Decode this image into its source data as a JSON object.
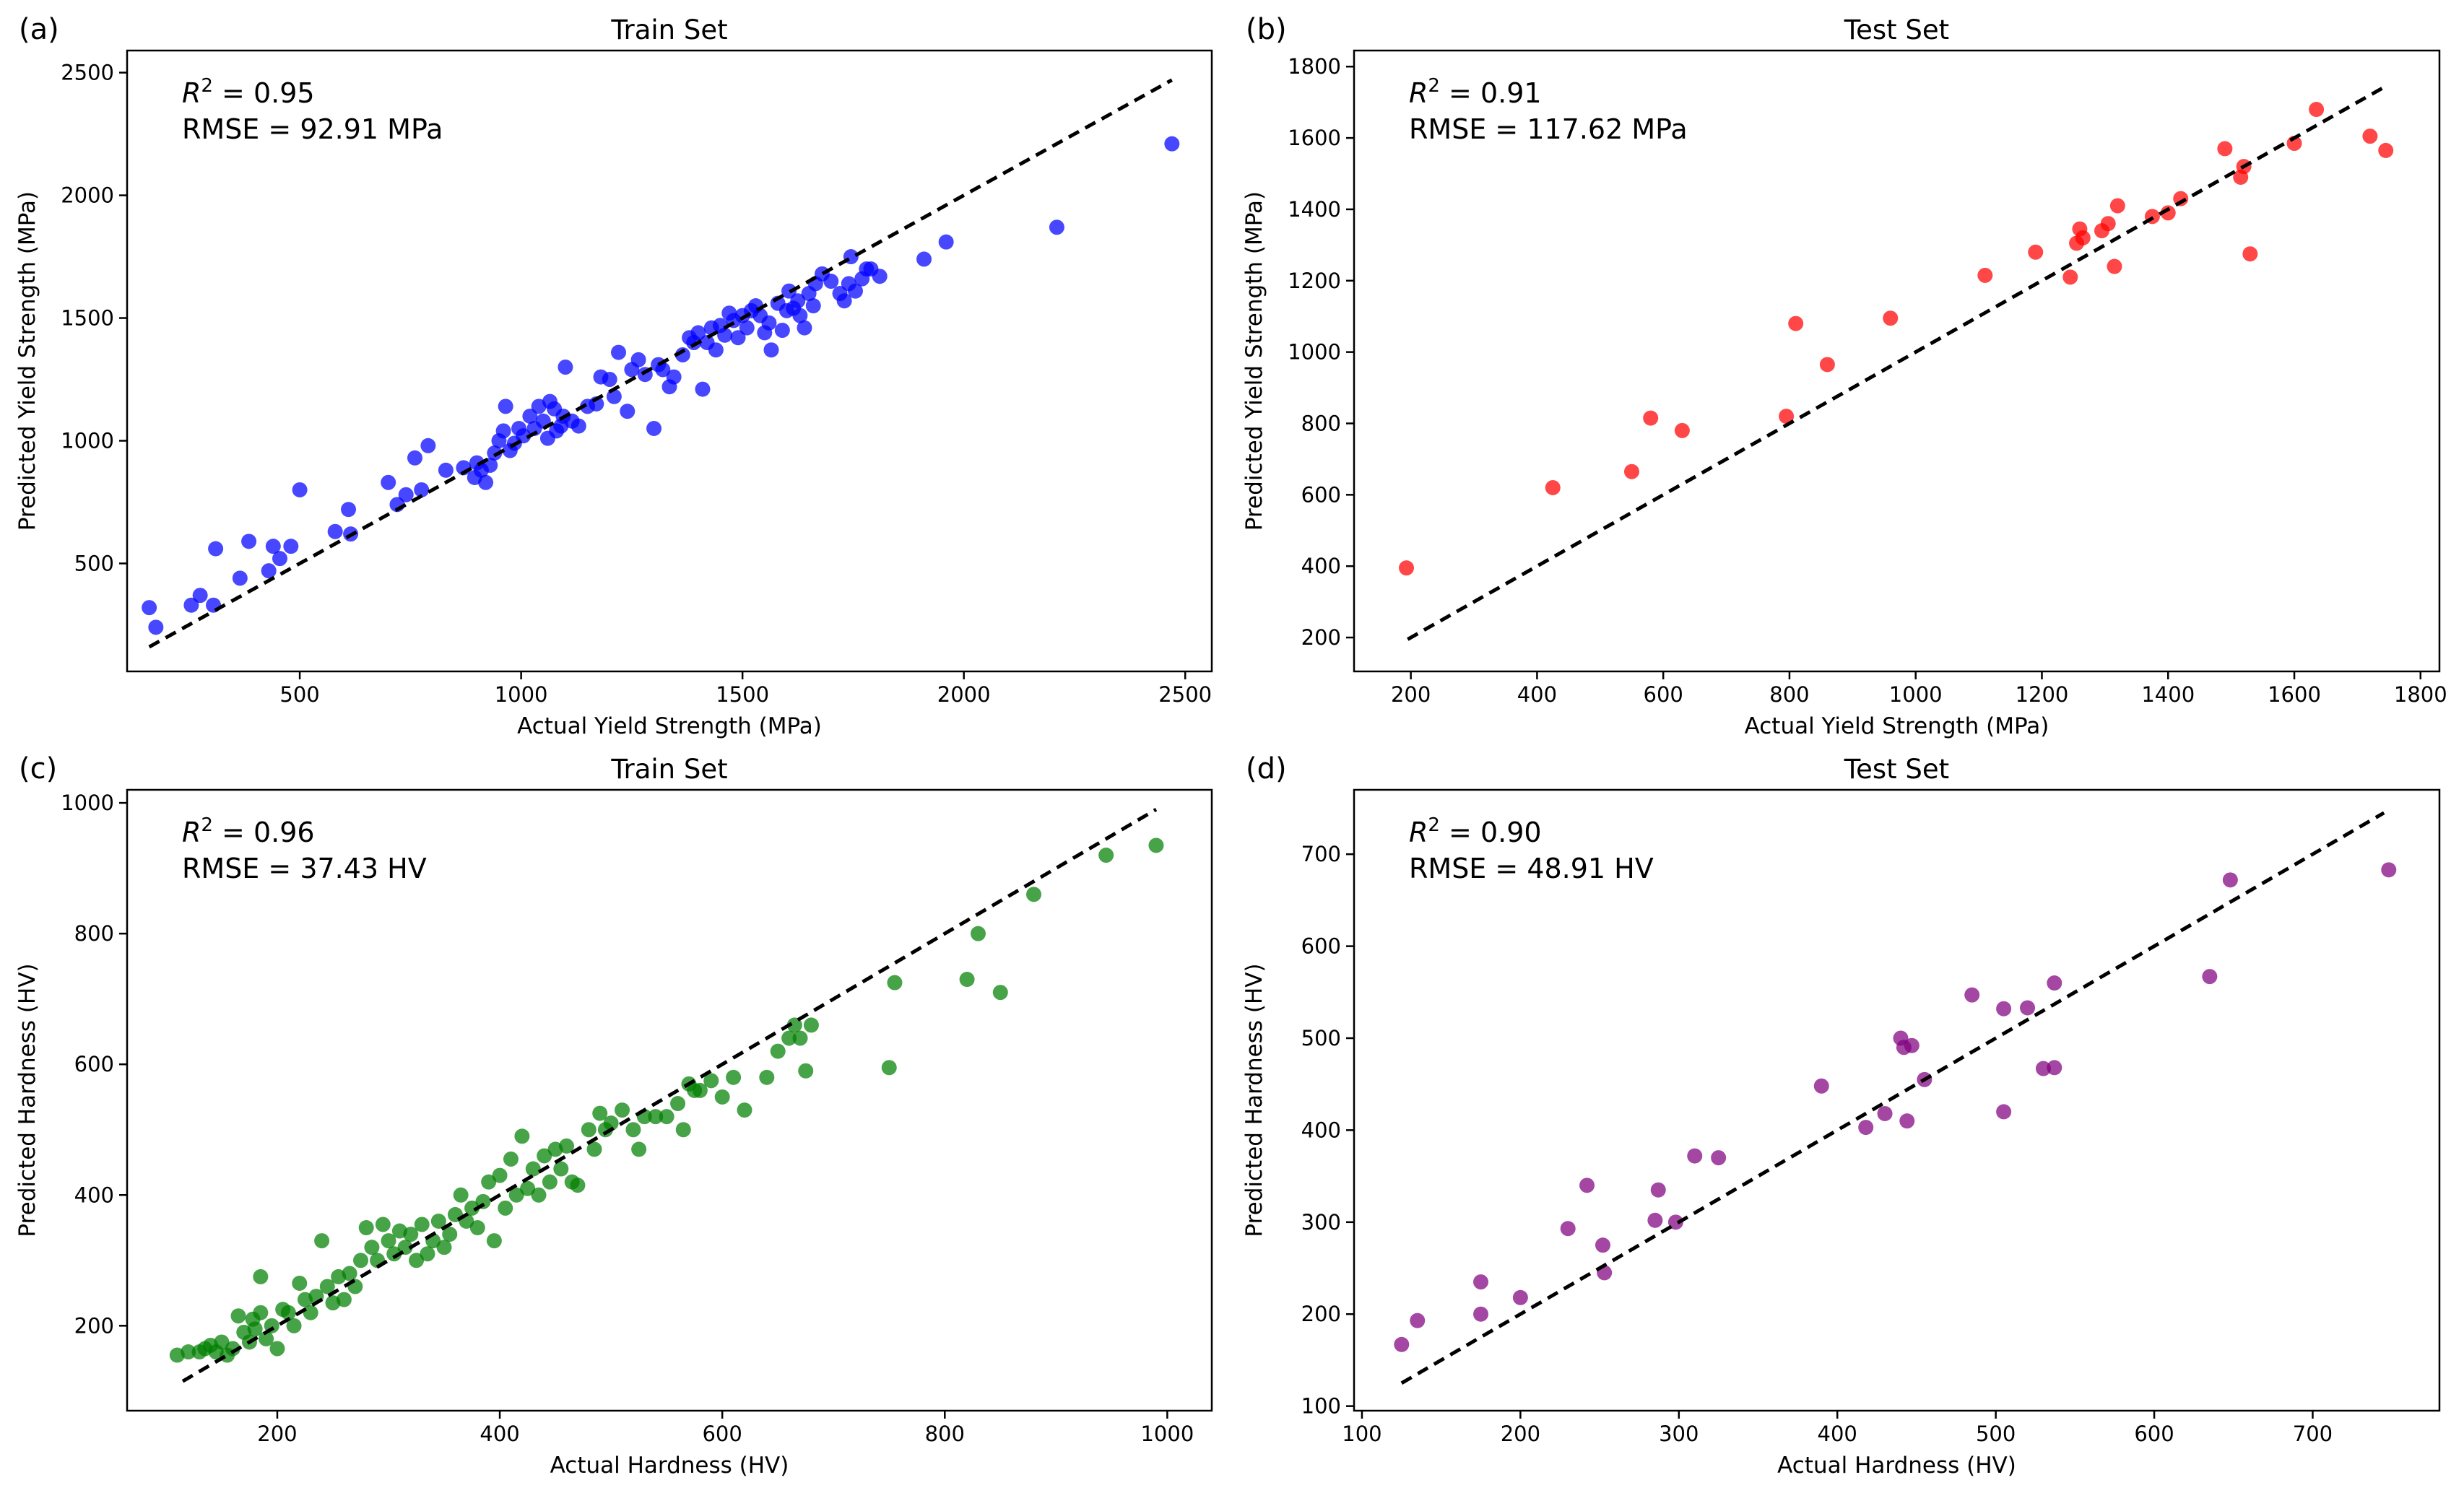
{
  "chart_data": [
    {
      "type": "scatter",
      "panel_label": "(a)",
      "title": "Train Set",
      "xlabel": "Actual Yield Strength (MPa)",
      "ylabel": "Predicted Yield Strength (MPa)",
      "xlim": [
        110,
        2560
      ],
      "ylim": [
        60,
        2590
      ],
      "xticks": [
        500,
        1000,
        1500,
        2000,
        2500
      ],
      "yticks": [
        500,
        1000,
        1500,
        2000,
        2500
      ],
      "xtick_labels": [
        "500",
        "1000",
        "1500",
        "2000",
        "2500"
      ],
      "ytick_labels": [
        "500",
        "1000",
        "1500",
        "2000",
        "2500"
      ],
      "r2_label": "R",
      "r2_sup": "2",
      "r2_value": " = 0.95",
      "rmse": "RMSE = 92.91 MPa",
      "color": "#0000ff",
      "diagonal": [
        160,
        2470
      ],
      "points": [
        [
          160,
          320
        ],
        [
          175,
          240
        ],
        [
          255,
          330
        ],
        [
          275,
          370
        ],
        [
          305,
          330
        ],
        [
          310,
          560
        ],
        [
          365,
          440
        ],
        [
          385,
          590
        ],
        [
          430,
          470
        ],
        [
          440,
          570
        ],
        [
          455,
          520
        ],
        [
          480,
          570
        ],
        [
          500,
          800
        ],
        [
          580,
          630
        ],
        [
          610,
          720
        ],
        [
          615,
          620
        ],
        [
          700,
          830
        ],
        [
          720,
          740
        ],
        [
          740,
          780
        ],
        [
          760,
          930
        ],
        [
          775,
          800
        ],
        [
          790,
          980
        ],
        [
          830,
          880
        ],
        [
          870,
          890
        ],
        [
          895,
          850
        ],
        [
          900,
          910
        ],
        [
          910,
          880
        ],
        [
          920,
          830
        ],
        [
          930,
          900
        ],
        [
          940,
          950
        ],
        [
          950,
          1000
        ],
        [
          960,
          1040
        ],
        [
          965,
          1140
        ],
        [
          975,
          960
        ],
        [
          985,
          990
        ],
        [
          995,
          1050
        ],
        [
          1005,
          1020
        ],
        [
          1020,
          1100
        ],
        [
          1030,
          1050
        ],
        [
          1040,
          1140
        ],
        [
          1050,
          1080
        ],
        [
          1060,
          1010
        ],
        [
          1065,
          1160
        ],
        [
          1075,
          1130
        ],
        [
          1080,
          1040
        ],
        [
          1090,
          1060
        ],
        [
          1095,
          1100
        ],
        [
          1100,
          1300
        ],
        [
          1115,
          1080
        ],
        [
          1130,
          1060
        ],
        [
          1150,
          1140
        ],
        [
          1170,
          1150
        ],
        [
          1180,
          1260
        ],
        [
          1200,
          1250
        ],
        [
          1210,
          1180
        ],
        [
          1220,
          1360
        ],
        [
          1240,
          1120
        ],
        [
          1250,
          1290
        ],
        [
          1265,
          1330
        ],
        [
          1280,
          1270
        ],
        [
          1300,
          1050
        ],
        [
          1310,
          1310
        ],
        [
          1320,
          1290
        ],
        [
          1335,
          1220
        ],
        [
          1345,
          1260
        ],
        [
          1365,
          1350
        ],
        [
          1380,
          1420
        ],
        [
          1390,
          1400
        ],
        [
          1400,
          1440
        ],
        [
          1410,
          1210
        ],
        [
          1420,
          1400
        ],
        [
          1430,
          1460
        ],
        [
          1440,
          1370
        ],
        [
          1450,
          1470
        ],
        [
          1460,
          1430
        ],
        [
          1470,
          1520
        ],
        [
          1480,
          1490
        ],
        [
          1490,
          1420
        ],
        [
          1500,
          1510
        ],
        [
          1510,
          1460
        ],
        [
          1520,
          1530
        ],
        [
          1530,
          1550
        ],
        [
          1540,
          1510
        ],
        [
          1550,
          1440
        ],
        [
          1560,
          1480
        ],
        [
          1565,
          1370
        ],
        [
          1580,
          1560
        ],
        [
          1590,
          1450
        ],
        [
          1600,
          1530
        ],
        [
          1605,
          1610
        ],
        [
          1615,
          1540
        ],
        [
          1625,
          1570
        ],
        [
          1630,
          1510
        ],
        [
          1640,
          1460
        ],
        [
          1650,
          1600
        ],
        [
          1660,
          1550
        ],
        [
          1665,
          1640
        ],
        [
          1680,
          1680
        ],
        [
          1700,
          1650
        ],
        [
          1720,
          1600
        ],
        [
          1730,
          1570
        ],
        [
          1740,
          1640
        ],
        [
          1745,
          1750
        ],
        [
          1755,
          1610
        ],
        [
          1770,
          1660
        ],
        [
          1780,
          1700
        ],
        [
          1790,
          1700
        ],
        [
          1810,
          1670
        ],
        [
          1910,
          1740
        ],
        [
          1960,
          1810
        ],
        [
          2210,
          1870
        ],
        [
          2470,
          2210
        ]
      ]
    },
    {
      "type": "scatter",
      "panel_label": "(b)",
      "title": "Test Set",
      "xlabel": "Actual Yield Strength (MPa)",
      "ylabel": "Predicted Yield Strength (MPa)",
      "xlim": [
        110,
        1830
      ],
      "ylim": [
        105,
        1845
      ],
      "xticks": [
        200,
        400,
        600,
        800,
        1000,
        1200,
        1400,
        1600,
        1800
      ],
      "yticks": [
        200,
        400,
        600,
        800,
        1000,
        1200,
        1400,
        1600,
        1800
      ],
      "xtick_labels": [
        "200",
        "400",
        "600",
        "800",
        "1000",
        "1200",
        "1400",
        "1600",
        "1800"
      ],
      "ytick_labels": [
        "200",
        "400",
        "600",
        "800",
        "1000",
        "1200",
        "1400",
        "1600",
        "1800"
      ],
      "r2_label": "R",
      "r2_sup": "2",
      "r2_value": " = 0.91",
      "rmse": "RMSE = 117.62 MPa",
      "color": "#ff0000",
      "diagonal": [
        195,
        1745
      ],
      "points": [
        [
          193,
          395
        ],
        [
          425,
          620
        ],
        [
          550,
          665
        ],
        [
          580,
          815
        ],
        [
          630,
          780
        ],
        [
          795,
          820
        ],
        [
          810,
          1080
        ],
        [
          860,
          965
        ],
        [
          960,
          1095
        ],
        [
          1110,
          1215
        ],
        [
          1190,
          1280
        ],
        [
          1245,
          1210
        ],
        [
          1255,
          1305
        ],
        [
          1260,
          1345
        ],
        [
          1265,
          1320
        ],
        [
          1295,
          1340
        ],
        [
          1305,
          1360
        ],
        [
          1315,
          1240
        ],
        [
          1320,
          1410
        ],
        [
          1375,
          1380
        ],
        [
          1400,
          1390
        ],
        [
          1420,
          1430
        ],
        [
          1490,
          1570
        ],
        [
          1515,
          1490
        ],
        [
          1520,
          1520
        ],
        [
          1530,
          1275
        ],
        [
          1600,
          1585
        ],
        [
          1635,
          1680
        ],
        [
          1720,
          1605
        ],
        [
          1745,
          1565
        ]
      ]
    },
    {
      "type": "scatter",
      "panel_label": "(c)",
      "title": "Train Set",
      "xlabel": "Actual Hardness (HV)",
      "ylabel": "Predicted Hardness (HV)",
      "xlim": [
        65,
        1040
      ],
      "ylim": [
        70,
        1020
      ],
      "xticks": [
        200,
        400,
        600,
        800,
        1000
      ],
      "yticks": [
        200,
        400,
        600,
        800,
        1000
      ],
      "xtick_labels": [
        "200",
        "400",
        "600",
        "800",
        "1000"
      ],
      "ytick_labels": [
        "200",
        "400",
        "600",
        "800",
        "1000"
      ],
      "r2_label": "R",
      "r2_sup": "2",
      "r2_value": " = 0.96",
      "rmse": "RMSE = 37.43 HV",
      "color": "#008000",
      "diagonal": [
        115,
        990
      ],
      "points": [
        [
          110,
          155
        ],
        [
          120,
          160
        ],
        [
          130,
          160
        ],
        [
          135,
          165
        ],
        [
          140,
          170
        ],
        [
          145,
          160
        ],
        [
          150,
          175
        ],
        [
          155,
          155
        ],
        [
          160,
          165
        ],
        [
          165,
          215
        ],
        [
          170,
          190
        ],
        [
          175,
          175
        ],
        [
          178,
          210
        ],
        [
          180,
          195
        ],
        [
          185,
          275
        ],
        [
          185,
          220
        ],
        [
          190,
          180
        ],
        [
          195,
          200
        ],
        [
          200,
          165
        ],
        [
          205,
          225
        ],
        [
          210,
          220
        ],
        [
          215,
          200
        ],
        [
          220,
          265
        ],
        [
          225,
          240
        ],
        [
          230,
          220
        ],
        [
          235,
          245
        ],
        [
          240,
          330
        ],
        [
          245,
          260
        ],
        [
          250,
          235
        ],
        [
          255,
          275
        ],
        [
          260,
          240
        ],
        [
          265,
          280
        ],
        [
          270,
          260
        ],
        [
          275,
          300
        ],
        [
          280,
          350
        ],
        [
          285,
          320
        ],
        [
          290,
          300
        ],
        [
          295,
          355
        ],
        [
          300,
          330
        ],
        [
          305,
          310
        ],
        [
          310,
          345
        ],
        [
          315,
          320
        ],
        [
          320,
          340
        ],
        [
          325,
          300
        ],
        [
          330,
          355
        ],
        [
          335,
          310
        ],
        [
          340,
          330
        ],
        [
          345,
          360
        ],
        [
          350,
          320
        ],
        [
          355,
          340
        ],
        [
          360,
          370
        ],
        [
          365,
          400
        ],
        [
          370,
          360
        ],
        [
          375,
          380
        ],
        [
          380,
          350
        ],
        [
          385,
          390
        ],
        [
          390,
          420
        ],
        [
          395,
          330
        ],
        [
          400,
          430
        ],
        [
          405,
          380
        ],
        [
          410,
          455
        ],
        [
          415,
          400
        ],
        [
          420,
          490
        ],
        [
          425,
          410
        ],
        [
          430,
          440
        ],
        [
          435,
          400
        ],
        [
          440,
          460
        ],
        [
          445,
          420
        ],
        [
          450,
          470
        ],
        [
          455,
          440
        ],
        [
          460,
          475
        ],
        [
          465,
          420
        ],
        [
          470,
          415
        ],
        [
          480,
          500
        ],
        [
          485,
          470
        ],
        [
          490,
          525
        ],
        [
          495,
          500
        ],
        [
          500,
          510
        ],
        [
          510,
          530
        ],
        [
          520,
          500
        ],
        [
          525,
          470
        ],
        [
          530,
          520
        ],
        [
          540,
          520
        ],
        [
          550,
          520
        ],
        [
          560,
          540
        ],
        [
          565,
          500
        ],
        [
          570,
          570
        ],
        [
          575,
          560
        ],
        [
          580,
          560
        ],
        [
          590,
          575
        ],
        [
          600,
          550
        ],
        [
          610,
          580
        ],
        [
          620,
          530
        ],
        [
          640,
          580
        ],
        [
          650,
          620
        ],
        [
          660,
          640
        ],
        [
          665,
          660
        ],
        [
          670,
          640
        ],
        [
          675,
          590
        ],
        [
          680,
          660
        ],
        [
          750,
          595
        ],
        [
          755,
          725
        ],
        [
          820,
          730
        ],
        [
          830,
          800
        ],
        [
          850,
          710
        ],
        [
          880,
          860
        ],
        [
          945,
          920
        ],
        [
          990,
          935
        ]
      ]
    },
    {
      "type": "scatter",
      "panel_label": "(d)",
      "title": "Test Set",
      "xlabel": "Actual Hardness (HV)",
      "ylabel": "Predicted Hardness (HV)",
      "xlim": [
        95,
        780
      ],
      "ylim": [
        95,
        770
      ],
      "xticks": [
        100,
        200,
        300,
        400,
        500,
        600,
        700
      ],
      "yticks": [
        100,
        200,
        300,
        400,
        500,
        600,
        700
      ],
      "xtick_labels": [
        "100",
        "200",
        "300",
        "400",
        "500",
        "600",
        "700"
      ],
      "ytick_labels": [
        "100",
        "200",
        "300",
        "400",
        "500",
        "600",
        "700"
      ],
      "r2_label": "R",
      "r2_sup": "2",
      "r2_value": " = 0.90",
      "rmse": "RMSE = 48.91 HV",
      "color": "#800080",
      "diagonal": [
        125,
        745
      ],
      "points": [
        [
          125,
          167
        ],
        [
          135,
          193
        ],
        [
          175,
          235
        ],
        [
          175,
          200
        ],
        [
          200,
          218
        ],
        [
          230,
          293
        ],
        [
          242,
          340
        ],
        [
          252,
          275
        ],
        [
          253,
          245
        ],
        [
          285,
          302
        ],
        [
          287,
          335
        ],
        [
          298,
          300
        ],
        [
          310,
          372
        ],
        [
          325,
          370
        ],
        [
          390,
          448
        ],
        [
          418,
          403
        ],
        [
          430,
          418
        ],
        [
          440,
          500
        ],
        [
          442,
          490
        ],
        [
          444,
          410
        ],
        [
          447,
          492
        ],
        [
          455,
          455
        ],
        [
          485,
          547
        ],
        [
          505,
          420
        ],
        [
          505,
          532
        ],
        [
          520,
          533
        ],
        [
          530,
          467
        ],
        [
          537,
          468
        ],
        [
          537,
          560
        ],
        [
          635,
          567
        ],
        [
          648,
          672
        ],
        [
          748,
          683
        ]
      ]
    }
  ]
}
